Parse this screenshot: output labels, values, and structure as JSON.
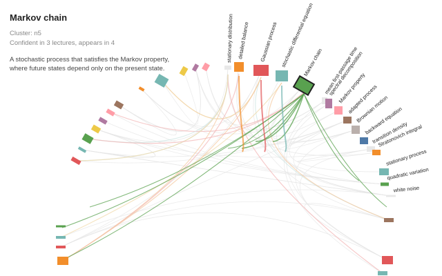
{
  "panel": {
    "title": "Markov chain",
    "cluster": "Cluster: n5",
    "confidence": "Confident in 3 lectures, appears in 4",
    "description": "A stochastic process that satisfies the Markov property, where future states depend only on the present state."
  },
  "graph": {
    "focus_node": "Markov chain",
    "labeled_nodes": [
      {
        "id": "stationary-distribution",
        "label": "stationary distribution",
        "color": "#e8e8e8"
      },
      {
        "id": "detailed-balance",
        "label": "detailed balance",
        "color": "#f28e2b"
      },
      {
        "id": "gaussian-process",
        "label": "Gaussian process",
        "color": "#e15759"
      },
      {
        "id": "sde",
        "label": "stochastic differential equation",
        "color": "#76b7b2"
      },
      {
        "id": "markov-chain",
        "label": "Markov chain",
        "color": "#59a14f"
      },
      {
        "id": "mean-first-passage",
        "label": "mean first-passage time",
        "color": "#e8e8e8"
      },
      {
        "id": "spectral-decomposition",
        "label": "spectral decomposition",
        "color": "#b07aa1"
      },
      {
        "id": "markov-property",
        "label": "Markov property",
        "color": "#ff9da7"
      },
      {
        "id": "adapted-process",
        "label": "adapted process",
        "color": "#9c755f"
      },
      {
        "id": "brownian-motion",
        "label": "Brownian motion",
        "color": "#bab0ac"
      },
      {
        "id": "backward-equation",
        "label": "backward equation",
        "color": "#4e79a7"
      },
      {
        "id": "transition-density",
        "label": "transition density",
        "color": "#e8e8e8"
      },
      {
        "id": "stratonovich-integral",
        "label": "Stratonovich integral",
        "color": "#f28e2b"
      },
      {
        "id": "stationary-process",
        "label": "stationary process",
        "color": "#76b7b2"
      },
      {
        "id": "quadratic-variation",
        "label": "quadratic variation",
        "color": "#59a14f"
      },
      {
        "id": "white-noise",
        "label": "white noise",
        "color": "#e8e8e8"
      }
    ],
    "unlabeled_node_colors": [
      "#e15759",
      "#76b7b2",
      "#59a14f",
      "#edc948",
      "#b07aa1",
      "#ff9da7",
      "#9c755f",
      "#f28e2b",
      "#76b7b2",
      "#edc948",
      "#b07aa1",
      "#ff9da7",
      "#59a14f",
      "#76b7b2",
      "#e15759",
      "#f28e2b",
      "#9c755f",
      "#e15759",
      "#76b7b2"
    ],
    "colors": {
      "focus_edge": "#59a14f",
      "focus_node_border": "#222222",
      "faint_edge": "#e6e6e6"
    }
  }
}
